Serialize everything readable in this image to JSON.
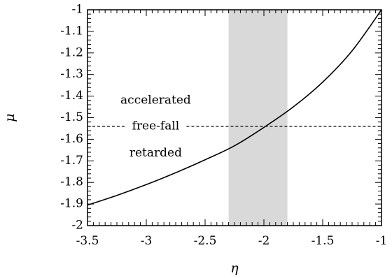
{
  "chart_data": {
    "type": "line",
    "xlabel": "η",
    "ylabel": "μ",
    "xlim": [
      -3.5,
      -1
    ],
    "ylim": [
      -2,
      -1
    ],
    "x_ticks": [
      "-3.5",
      "-3",
      "-2.5",
      "-2",
      "-1.5",
      "-1"
    ],
    "x_tick_values": [
      -3.5,
      -3,
      -2.5,
      -2,
      -1.5,
      -1
    ],
    "y_ticks": [
      "-1",
      "-1.1",
      "-1.2",
      "-1.3",
      "-1.4",
      "-1.5",
      "-1.6",
      "-1.7",
      "-1.8",
      "-1.9",
      "-2"
    ],
    "y_tick_values": [
      -1,
      -1.1,
      -1.2,
      -1.3,
      -1.4,
      -1.5,
      -1.6,
      -1.7,
      -1.8,
      -1.9,
      -2
    ],
    "grid": false,
    "shaded_band": {
      "x_range": [
        -2.3,
        -1.8
      ],
      "color": "#d9d9d9"
    },
    "reference_line": {
      "y": -1.54,
      "style": "dashed",
      "label": "free-fall"
    },
    "annotations": [
      {
        "text": "accelerated",
        "x": -2.92,
        "y": -1.42
      },
      {
        "text": "free-fall",
        "x": -2.92,
        "y": -1.54
      },
      {
        "text": "retarded",
        "x": -2.92,
        "y": -1.665
      }
    ],
    "series": [
      {
        "x": [
          -3.5,
          -3.25,
          -3.0,
          -2.75,
          -2.5,
          -2.25,
          -2.0,
          -1.75,
          -1.5,
          -1.25,
          -1.0
        ],
        "y": [
          -1.905,
          -1.86,
          -1.81,
          -1.755,
          -1.695,
          -1.63,
          -1.545,
          -1.45,
          -1.335,
          -1.19,
          -1.0
        ],
        "color": "#000000"
      }
    ]
  }
}
